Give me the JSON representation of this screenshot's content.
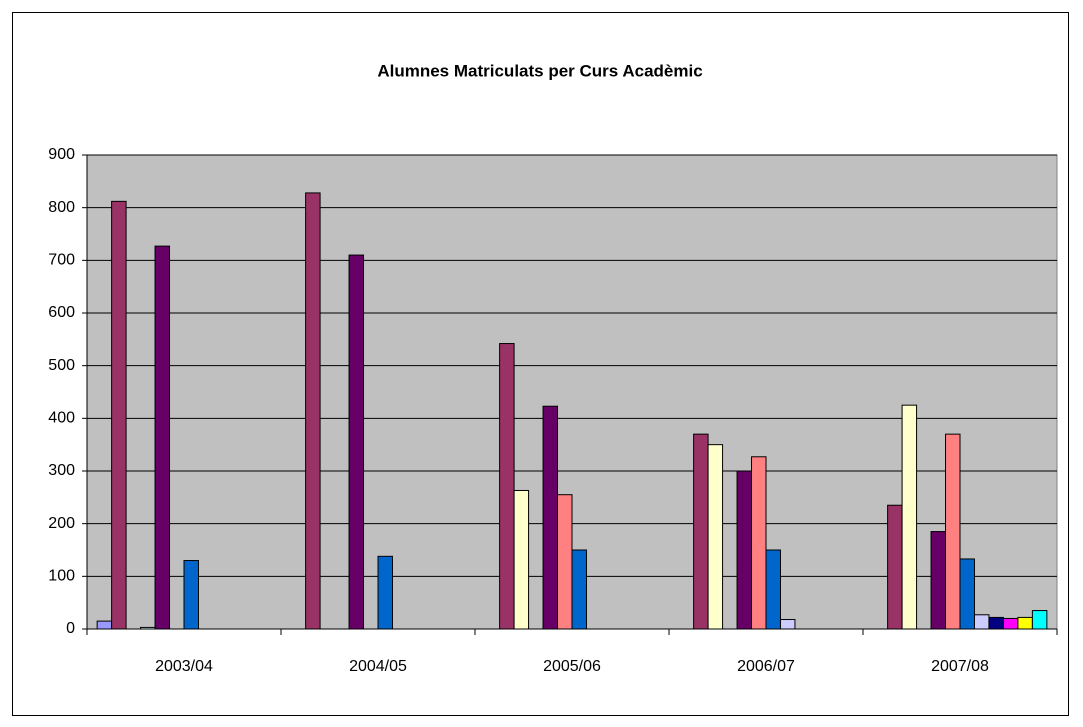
{
  "chart_data": {
    "type": "bar",
    "title": "Alumnes Matriculats per Curs Acadèmic",
    "categories": [
      "2003/04",
      "2004/05",
      "2005/06",
      "2006/07",
      "2007/08"
    ],
    "series": [
      {
        "color": "#9999ff",
        "values": [
          15,
          null,
          null,
          null,
          null
        ]
      },
      {
        "color": "#993366",
        "values": [
          812,
          828,
          542,
          370,
          235
        ]
      },
      {
        "color": "#ffffcc",
        "values": [
          null,
          null,
          263,
          350,
          425
        ]
      },
      {
        "color": "#ccffff",
        "values": [
          3,
          null,
          null,
          null,
          null
        ]
      },
      {
        "color": "#660066",
        "values": [
          727,
          710,
          423,
          300,
          185
        ]
      },
      {
        "color": "#ff8080",
        "values": [
          null,
          null,
          255,
          327,
          370
        ]
      },
      {
        "color": "#0066cc",
        "values": [
          130,
          138,
          150,
          150,
          133
        ]
      },
      {
        "color": "#ccccff",
        "values": [
          null,
          null,
          null,
          18,
          27
        ]
      },
      {
        "color": "#000080",
        "values": [
          null,
          null,
          null,
          null,
          22
        ]
      },
      {
        "color": "#ff00ff",
        "values": [
          null,
          null,
          null,
          null,
          20
        ]
      },
      {
        "color": "#ffff00",
        "values": [
          null,
          null,
          null,
          null,
          22
        ]
      },
      {
        "color": "#00ffff",
        "values": [
          null,
          null,
          null,
          null,
          35
        ]
      }
    ],
    "ylim": [
      0,
      900
    ],
    "yticks": [
      0,
      100,
      200,
      300,
      400,
      500,
      600,
      700,
      800,
      900
    ],
    "grid": true,
    "plot_background": "#c0c0c0"
  }
}
